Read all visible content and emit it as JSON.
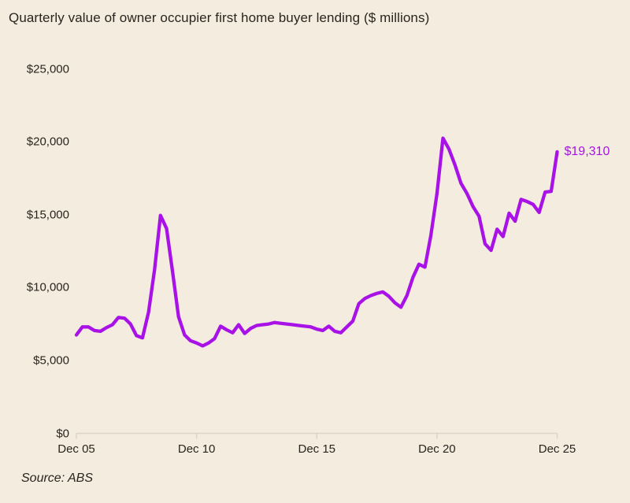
{
  "page": {
    "title": "Quarterly value of owner occupier first home buyer lending ($ millions)",
    "source": "Source: ABS"
  },
  "colors": {
    "background": "#f4ecdf",
    "line": "#a812e6",
    "text": "#2a241e",
    "axis": "#ddd4c3"
  },
  "chart_data": {
    "type": "line",
    "title": "Quarterly value of owner occupier first home buyer lending ($ millions)",
    "source": "Source: ABS",
    "series_name": "Owner occupier first home buyer lending",
    "unit": "$ millions",
    "frequency": "quarterly",
    "x": [
      "Dec 05",
      "Mar 06",
      "Jun 06",
      "Sep 06",
      "Dec 06",
      "Mar 07",
      "Jun 07",
      "Sep 07",
      "Dec 07",
      "Mar 08",
      "Jun 08",
      "Sep 08",
      "Dec 08",
      "Mar 09",
      "Jun 09",
      "Sep 09",
      "Dec 09",
      "Mar 10",
      "Jun 10",
      "Sep 10",
      "Dec 10",
      "Mar 11",
      "Jun 11",
      "Sep 11",
      "Dec 11",
      "Mar 12",
      "Jun 12",
      "Sep 12",
      "Dec 12",
      "Mar 13",
      "Jun 13",
      "Sep 13",
      "Dec 13",
      "Mar 14",
      "Jun 14",
      "Sep 14",
      "Dec 14",
      "Mar 15",
      "Jun 15",
      "Sep 15",
      "Dec 15",
      "Mar 16",
      "Jun 16",
      "Sep 16",
      "Dec 16",
      "Mar 17",
      "Jun 17",
      "Sep 17",
      "Dec 17",
      "Mar 18",
      "Jun 18",
      "Sep 18",
      "Dec 18",
      "Mar 19",
      "Jun 19",
      "Sep 19",
      "Dec 19",
      "Mar 20",
      "Jun 20",
      "Sep 20",
      "Dec 20",
      "Mar 21",
      "Jun 21",
      "Sep 21",
      "Dec 21",
      "Mar 22",
      "Jun 22",
      "Sep 22",
      "Dec 22",
      "Mar 23",
      "Jun 23",
      "Sep 23",
      "Dec 23",
      "Mar 24",
      "Jun 24",
      "Sep 24",
      "Dec 24",
      "Mar 25",
      "Jun 25",
      "Sep 25",
      "Dec 25"
    ],
    "values": [
      6750,
      7300,
      7300,
      7050,
      7000,
      7250,
      7450,
      7950,
      7900,
      7500,
      6700,
      6550,
      8300,
      11200,
      14950,
      14050,
      11100,
      8000,
      6750,
      6350,
      6200,
      6000,
      6200,
      6500,
      7350,
      7100,
      6900,
      7450,
      6850,
      7200,
      7400,
      7450,
      7500,
      7600,
      7550,
      7500,
      7450,
      7400,
      7350,
      7300,
      7150,
      7050,
      7350,
      7000,
      6900,
      7300,
      7700,
      8900,
      9250,
      9450,
      9600,
      9700,
      9400,
      8950,
      8650,
      9450,
      10700,
      11600,
      11400,
      13600,
      16450,
      20250,
      19500,
      18400,
      17150,
      16450,
      15550,
      14900,
      13000,
      12550,
      14000,
      13500,
      15100,
      14550,
      16050,
      15900,
      15700,
      15150,
      16550,
      16600,
      19310
    ],
    "ylim": [
      0,
      25000
    ],
    "grid": false,
    "legend_position": "none",
    "y_ticks": {
      "values": [
        0,
        5000,
        10000,
        15000,
        20000,
        25000
      ],
      "labels": [
        "$0",
        "$5,000",
        "$10,000",
        "$15,000",
        "$20,000",
        "$25,000"
      ]
    },
    "x_ticks": {
      "labels": [
        "Dec 05",
        "Dec 10",
        "Dec 15",
        "Dec 20",
        "Dec 25"
      ],
      "every_n_points": 20
    },
    "annotation": {
      "text": "$19,310",
      "value": 19310,
      "at": "last-point"
    }
  }
}
